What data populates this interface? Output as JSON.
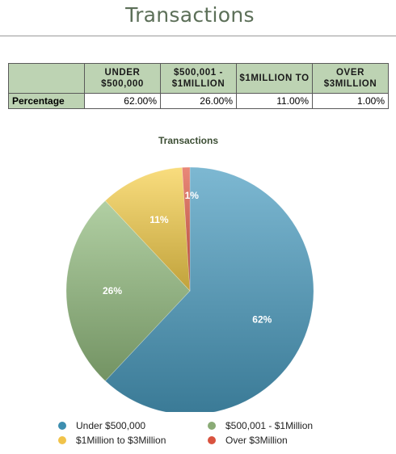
{
  "page": {
    "title": "Transactions"
  },
  "table": {
    "headers": [
      "",
      "UNDER $500,000",
      "$500,001 - $1MILLION",
      "$1MILLION TO",
      "OVER $3MILLION"
    ],
    "rows": [
      {
        "label": "Percentage",
        "cells": [
          "62.00%",
          "26.00%",
          "11.00%",
          "1.00%"
        ]
      }
    ]
  },
  "chart_data": {
    "type": "pie",
    "title": "Transactions",
    "categories": [
      "Under $500,000",
      "$500,001 - $1Million",
      "$1Million to $3Million",
      "Over $3Million"
    ],
    "values": [
      62,
      26,
      11,
      1
    ],
    "data_labels": [
      "62%",
      "26%",
      "11%",
      "1%"
    ],
    "colors": [
      "#4a9cc0",
      "#93bd7f",
      "#f7d04c",
      "#e05a45"
    ],
    "legend_position": "bottom"
  },
  "legend": {
    "items": [
      {
        "label": "Under $500,000",
        "color": "#3d8eaf"
      },
      {
        "label": "$500,001 - $1Million",
        "color": "#8aab76"
      },
      {
        "label": "$1Million to $3Million",
        "color": "#f1c34a"
      },
      {
        "label": "Over $3Million",
        "color": "#d9533f"
      }
    ]
  }
}
